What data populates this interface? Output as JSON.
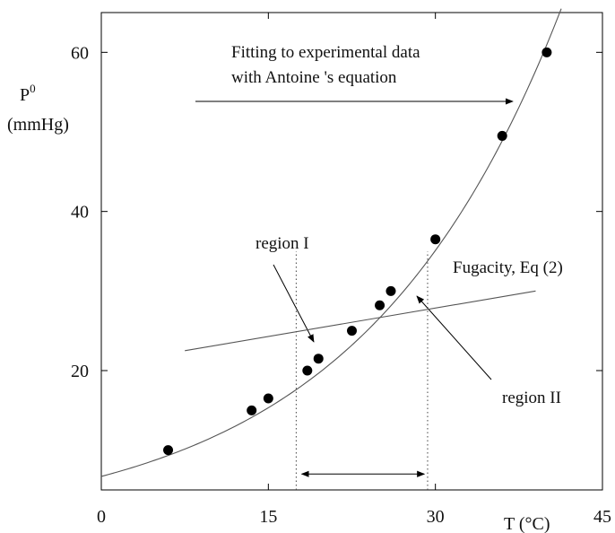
{
  "chart_data": {
    "type": "scatter",
    "xlabel": "T (°C)",
    "ylabel_main": "P",
    "ylabel_sup": "0",
    "ylabel_unit": "(mmHg)",
    "xlim": [
      0,
      45
    ],
    "ylim": [
      5,
      65
    ],
    "xticks": [
      0,
      15,
      30,
      45
    ],
    "yticks": [
      20,
      40,
      60
    ],
    "grid": false,
    "points": [
      {
        "x": 6,
        "y": 10
      },
      {
        "x": 13.5,
        "y": 15
      },
      {
        "x": 15,
        "y": 16.5
      },
      {
        "x": 18.5,
        "y": 20
      },
      {
        "x": 19.5,
        "y": 21.5
      },
      {
        "x": 22.5,
        "y": 25
      },
      {
        "x": 25,
        "y": 28.2
      },
      {
        "x": 26,
        "y": 30
      },
      {
        "x": 30,
        "y": 36.5
      },
      {
        "x": 36,
        "y": 49.5
      },
      {
        "x": 40,
        "y": 60
      }
    ],
    "fit_curve": {
      "model": "exponential",
      "a": 6.7,
      "b": 0.0552,
      "x_range": [
        0,
        41.3
      ]
    },
    "fugacity_line": {
      "x": [
        7.5,
        39
      ],
      "y": [
        22.5,
        30
      ]
    },
    "vlines": [
      17.5,
      29.3
    ],
    "vline_range": [
      5,
      35
    ],
    "range_arrow": {
      "x": [
        18,
        29
      ],
      "y": 7
    },
    "annotations": {
      "fit_line1": "Fitting to experimental data",
      "fit_line2": "with Antoine 's equation",
      "region1": "region I",
      "fugacity": "Fugacity, Eq (2)",
      "region2": "region II"
    }
  }
}
